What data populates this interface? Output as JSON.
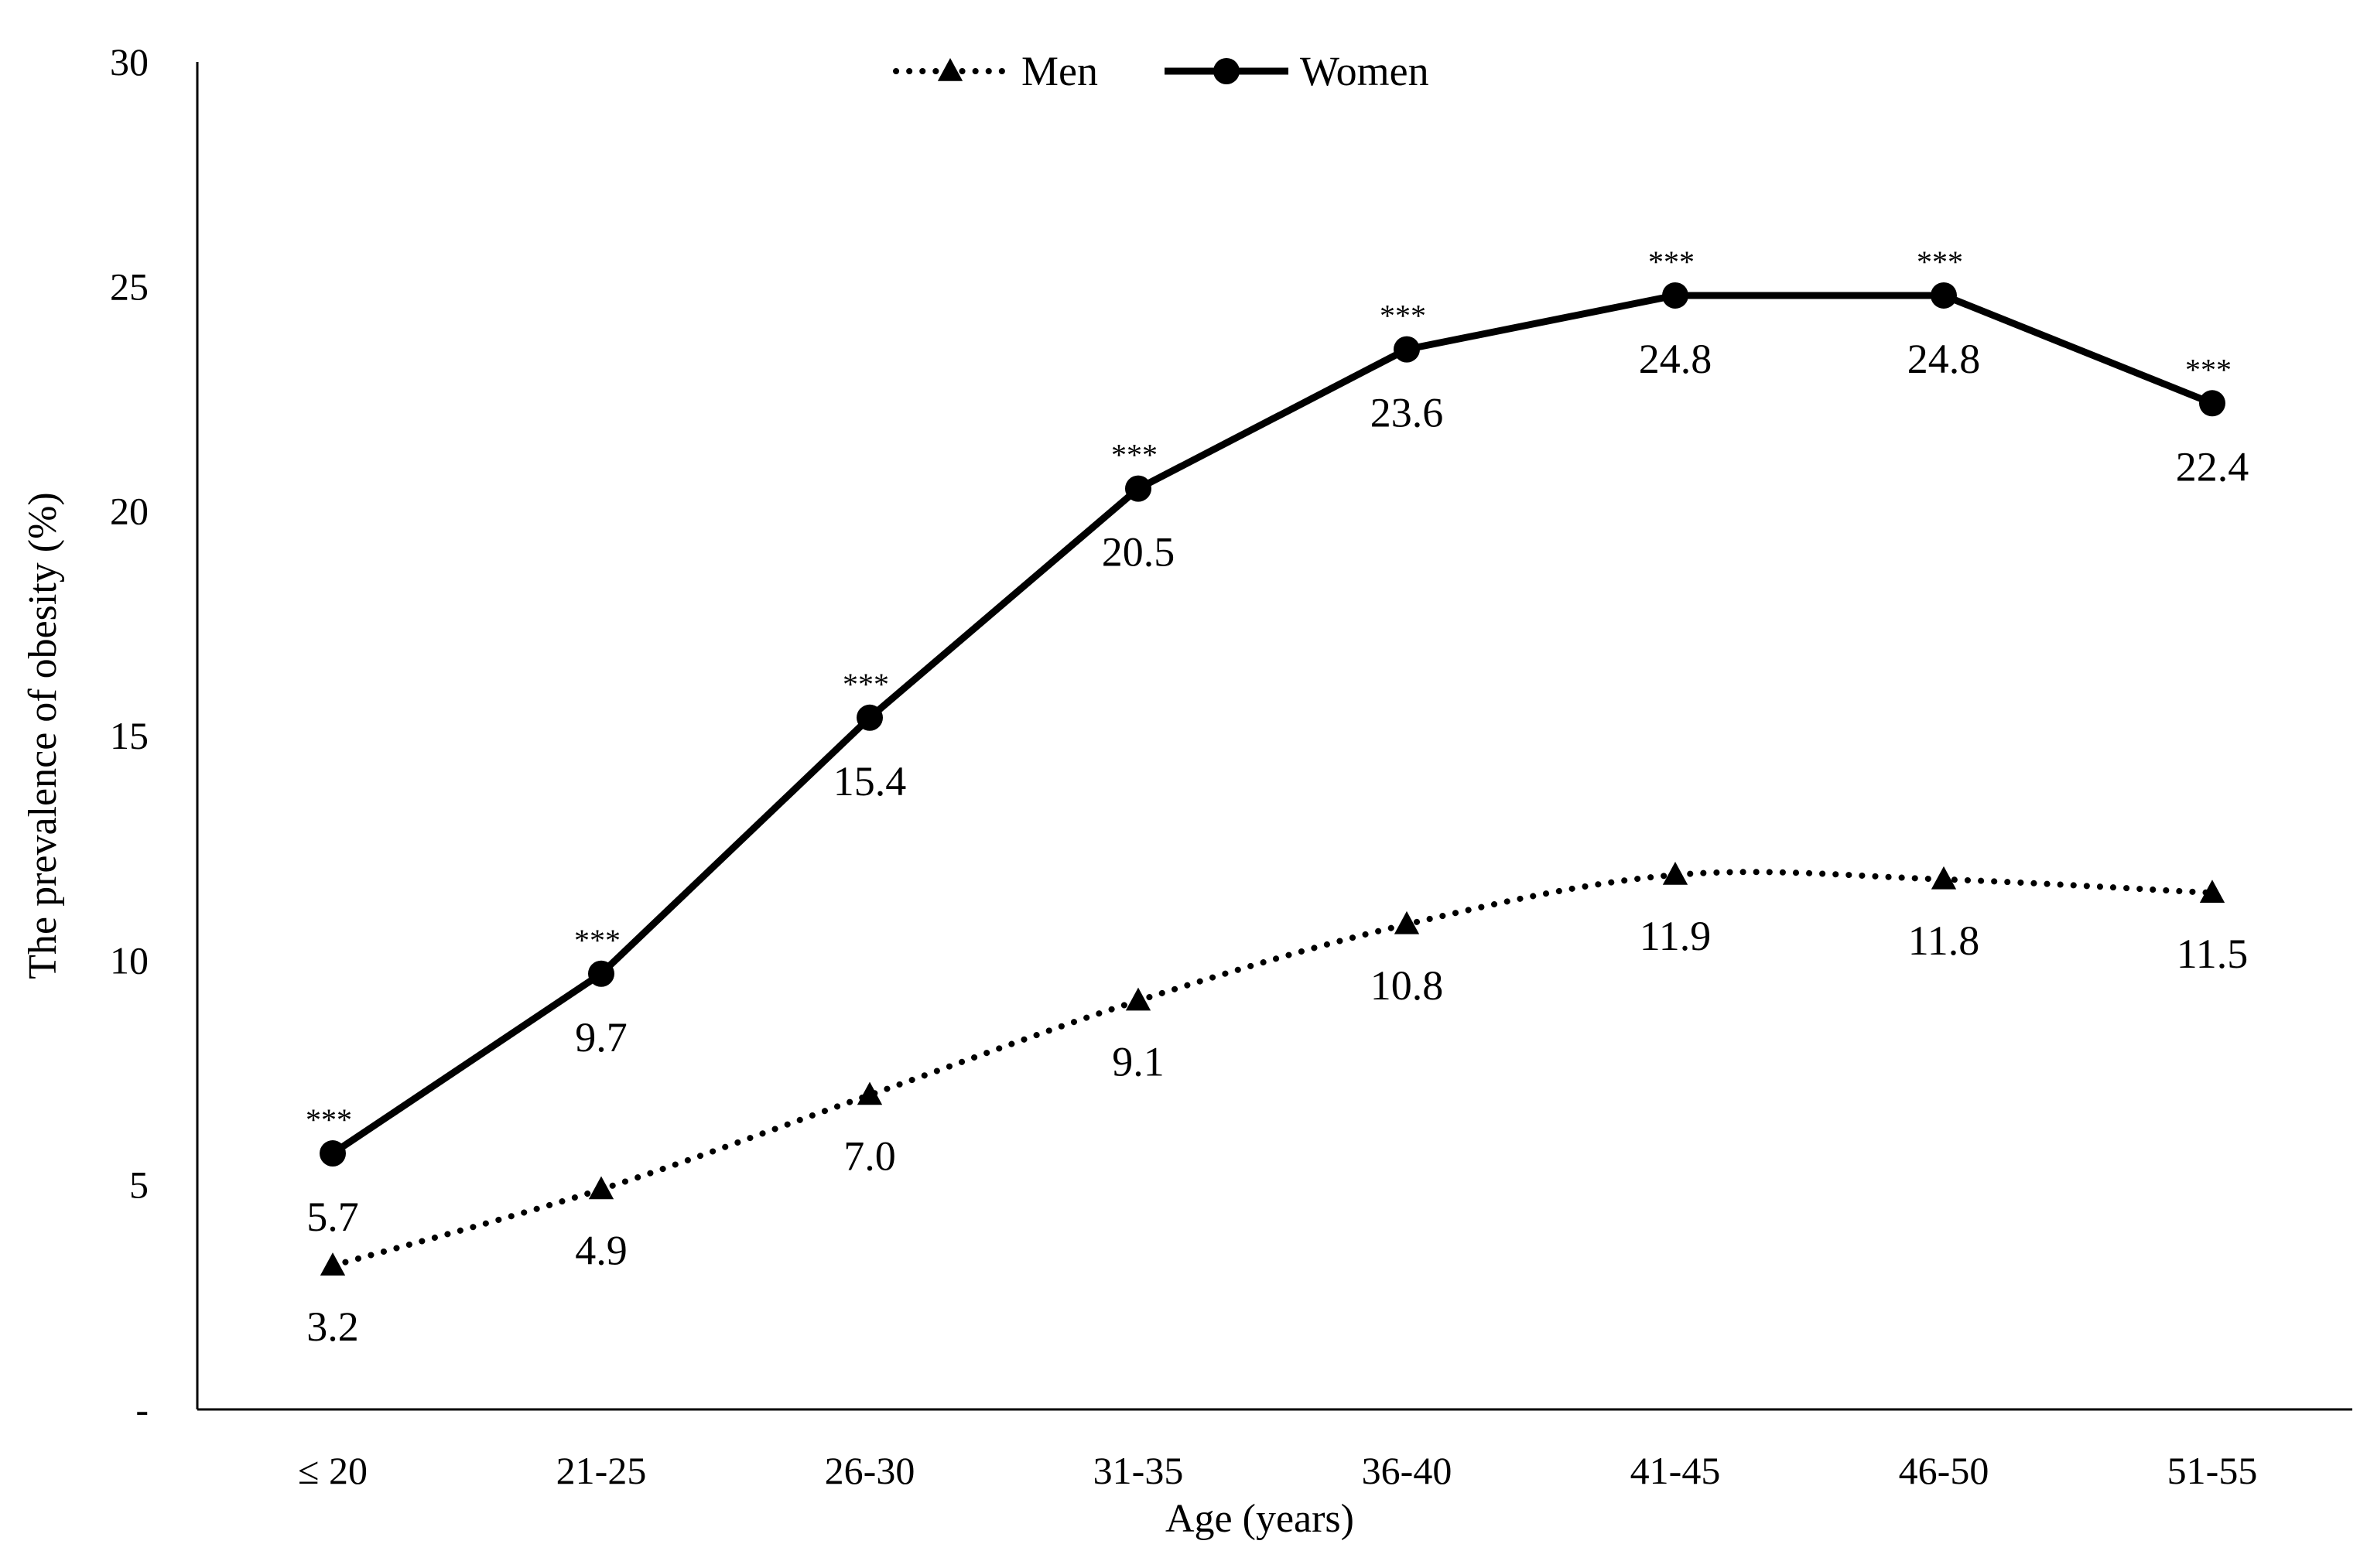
{
  "chart_data": {
    "type": "line",
    "title": "",
    "xlabel": "Age (years)",
    "ylabel": "The prevalence of obesity (%)",
    "categories": [
      "≤ 20",
      "21-25",
      "26-30",
      "31-35",
      "36-40",
      "41-45",
      "46-50",
      "51-55"
    ],
    "ylim": [
      0,
      30
    ],
    "yticks": [
      {
        "value": 0,
        "label": "-"
      },
      {
        "value": 5,
        "label": "5"
      },
      {
        "value": 10,
        "label": "10"
      },
      {
        "value": 15,
        "label": "15"
      },
      {
        "value": 20,
        "label": "20"
      },
      {
        "value": 25,
        "label": "25"
      },
      {
        "value": 30,
        "label": "30"
      }
    ],
    "grid": false,
    "legend": "top-center",
    "series": [
      {
        "name": "Men",
        "style": "dotted",
        "marker": "triangle",
        "color": "#000000",
        "values": [
          3.2,
          4.9,
          7.0,
          9.1,
          10.8,
          11.9,
          11.8,
          11.5
        ],
        "labels": [
          "3.2",
          "4.9",
          "7.0",
          "9.1",
          "10.8",
          "11.9",
          "11.8",
          "11.5"
        ]
      },
      {
        "name": "Women",
        "style": "solid",
        "marker": "circle",
        "color": "#000000",
        "values": [
          5.7,
          9.7,
          15.4,
          20.5,
          23.6,
          24.8,
          24.8,
          22.4
        ],
        "labels": [
          "5.7",
          "9.7",
          "15.4",
          "20.5",
          "23.6",
          "24.8",
          "24.8",
          "22.4"
        ],
        "significance": [
          "***",
          "***",
          "***",
          "***",
          "***",
          "***",
          "***",
          "***"
        ]
      }
    ]
  }
}
